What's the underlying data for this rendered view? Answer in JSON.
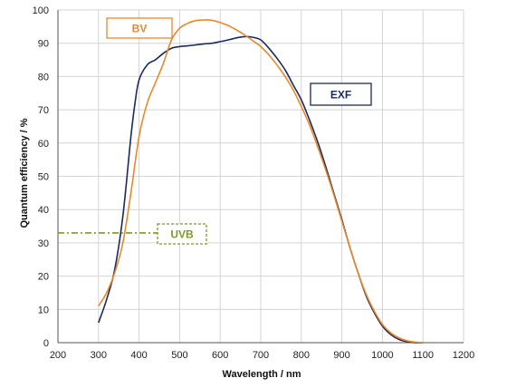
{
  "chart_data": {
    "type": "line",
    "title": "",
    "xlabel": "Wavelength / nm",
    "ylabel": "Quantum efficiency / %",
    "xlim": [
      200,
      1200
    ],
    "ylim": [
      0,
      100
    ],
    "xticks": [
      200,
      300,
      400,
      500,
      600,
      700,
      800,
      900,
      1000,
      1100,
      1200
    ],
    "yticks": [
      0,
      10,
      20,
      30,
      40,
      50,
      60,
      70,
      80,
      90,
      100
    ],
    "grid": true,
    "legend": "inline labels",
    "series": [
      {
        "name": "EXF",
        "color": "#1b2a5c",
        "x": [
          300,
          320,
          340,
          360,
          380,
          390,
          400,
          420,
          440,
          460,
          480,
          500,
          520,
          540,
          560,
          580,
          600,
          620,
          640,
          660,
          680,
          700,
          720,
          740,
          760,
          780,
          800,
          820,
          840,
          860,
          880,
          900,
          920,
          940,
          960,
          980,
          1000,
          1020,
          1040,
          1060,
          1080,
          1100
        ],
        "y": [
          6,
          13,
          22,
          38,
          62,
          72,
          79,
          83.5,
          85,
          87,
          88.5,
          89,
          89.2,
          89.5,
          89.8,
          90,
          90.5,
          91,
          91.6,
          92,
          91.8,
          91,
          88.5,
          85.5,
          82,
          77.5,
          73,
          67,
          60.5,
          53,
          45,
          37,
          28.5,
          21,
          14,
          9,
          5,
          2.5,
          1,
          0.3,
          0,
          0
        ]
      },
      {
        "name": "BV",
        "color": "#e8892e",
        "x": [
          300,
          320,
          340,
          360,
          380,
          400,
          420,
          440,
          460,
          480,
          500,
          520,
          540,
          560,
          580,
          600,
          620,
          640,
          660,
          680,
          700,
          720,
          740,
          760,
          780,
          800,
          820,
          840,
          860,
          880,
          900,
          920,
          940,
          960,
          980,
          1000,
          1020,
          1040,
          1060,
          1080,
          1100
        ],
        "y": [
          11,
          15,
          21,
          30,
          45,
          62,
          72,
          78,
          84,
          91,
          94.5,
          96,
          96.8,
          97,
          96.9,
          96.2,
          95.3,
          94,
          92.5,
          90.8,
          89,
          86.5,
          83.5,
          80,
          76,
          71,
          65.5,
          59,
          52,
          44.5,
          36.5,
          28.5,
          21,
          14.5,
          9.5,
          5.5,
          3,
          1.5,
          0.6,
          0.2,
          0
        ]
      },
      {
        "name": "UVB",
        "color": "#7a9a2a",
        "x": [
          200,
          460
        ],
        "y": [
          33,
          33
        ]
      }
    ]
  }
}
